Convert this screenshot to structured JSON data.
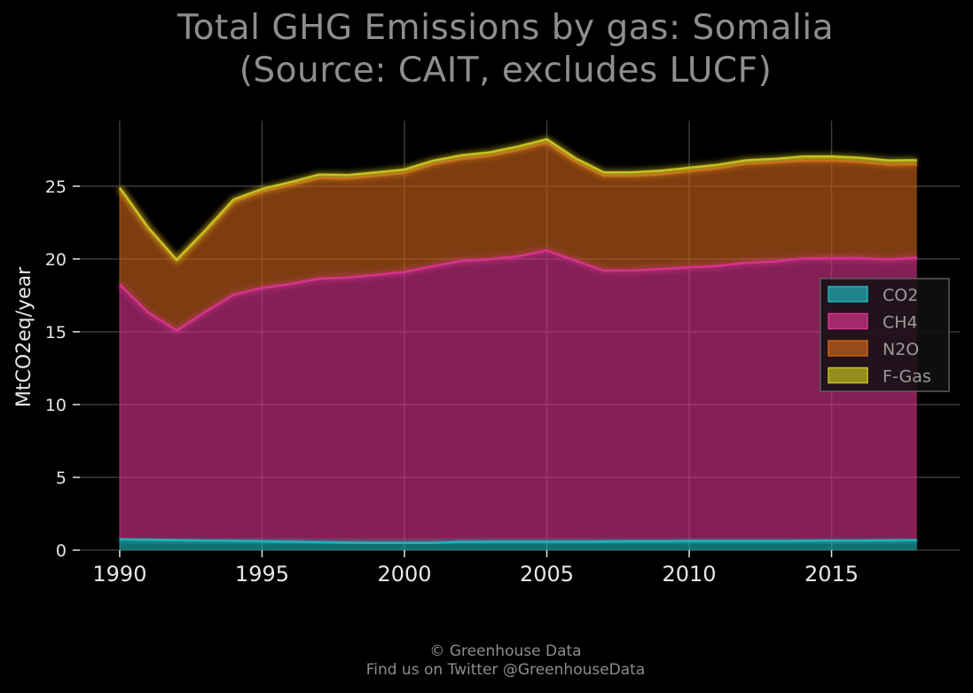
{
  "title_line1": "Total GHG Emissions by gas: Somalia",
  "title_line2": "(Source: CAIT, excludes LUCF)",
  "footer_line1": "© Greenhouse Data",
  "footer_line2": "Find us on Twitter @GreenhouseData",
  "chart_data": {
    "type": "area",
    "stacked": true,
    "title": "Total GHG Emissions by gas: Somalia (Source: CAIT, excludes LUCF)",
    "xlabel": "",
    "ylabel": "MtCO2eq/year",
    "x": [
      1990,
      1991,
      1992,
      1993,
      1994,
      1995,
      1996,
      1997,
      1998,
      1999,
      2000,
      2001,
      2002,
      2003,
      2004,
      2005,
      2006,
      2007,
      2008,
      2009,
      2010,
      2011,
      2012,
      2013,
      2014,
      2015,
      2016,
      2017,
      2018
    ],
    "xlim": [
      1988.6,
      2019.5
    ],
    "ylim": [
      0,
      29.5
    ],
    "xticks": [
      1990,
      1995,
      2000,
      2005,
      2010,
      2015
    ],
    "yticks": [
      0,
      5,
      10,
      15,
      20,
      25
    ],
    "grid": true,
    "legend_position": "right",
    "series": [
      {
        "name": "CO2",
        "color": "#1fb4b8",
        "values": [
          0.75,
          0.72,
          0.69,
          0.66,
          0.64,
          0.61,
          0.58,
          0.55,
          0.52,
          0.5,
          0.5,
          0.5,
          0.57,
          0.58,
          0.58,
          0.58,
          0.58,
          0.6,
          0.61,
          0.61,
          0.62,
          0.62,
          0.63,
          0.63,
          0.64,
          0.65,
          0.66,
          0.67,
          0.69
        ]
      },
      {
        "name": "CH4",
        "color": "#d6338c",
        "values": [
          17.5,
          15.6,
          14.4,
          15.7,
          16.9,
          17.4,
          17.7,
          18.1,
          18.2,
          18.4,
          18.6,
          19.0,
          19.3,
          19.4,
          19.6,
          20.0,
          19.3,
          18.6,
          18.6,
          18.7,
          18.8,
          18.9,
          19.1,
          19.2,
          19.4,
          19.4,
          19.4,
          19.3,
          19.4
        ]
      },
      {
        "name": "N2O",
        "color": "#c9621a",
        "values": [
          6.6,
          5.8,
          4.8,
          5.5,
          6.4,
          6.6,
          6.8,
          6.9,
          6.8,
          6.8,
          6.8,
          7.0,
          7.0,
          7.1,
          7.3,
          7.4,
          6.8,
          6.5,
          6.5,
          6.5,
          6.6,
          6.7,
          6.8,
          6.8,
          6.7,
          6.7,
          6.6,
          6.5,
          6.4
        ]
      },
      {
        "name": "F-Gas",
        "color": "#c3c21f",
        "values": [
          0.05,
          0.05,
          0.05,
          0.1,
          0.15,
          0.2,
          0.2,
          0.25,
          0.25,
          0.25,
          0.25,
          0.25,
          0.25,
          0.25,
          0.25,
          0.25,
          0.25,
          0.25,
          0.25,
          0.25,
          0.25,
          0.25,
          0.25,
          0.25,
          0.3,
          0.3,
          0.3,
          0.3,
          0.3
        ]
      }
    ]
  }
}
